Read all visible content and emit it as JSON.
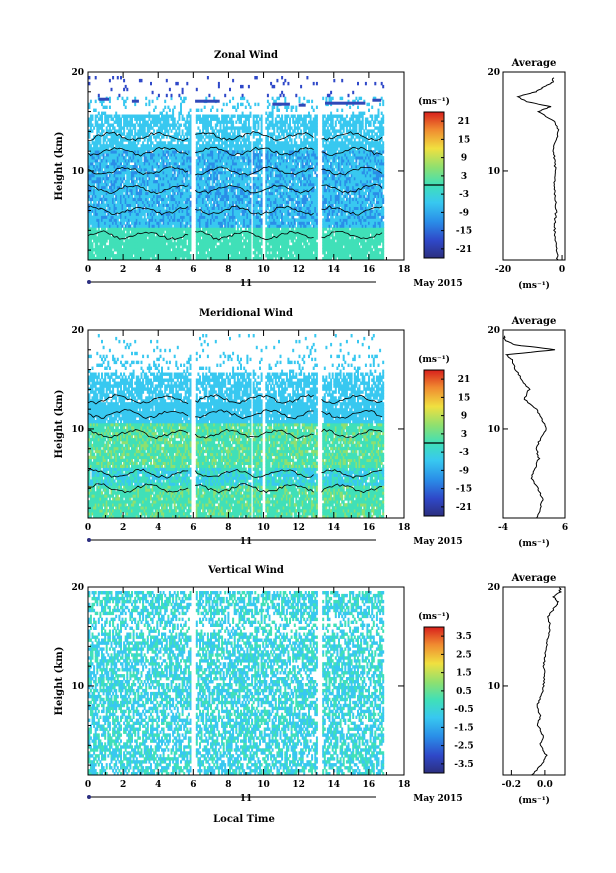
{
  "figure": {
    "xlabel": "Local Time",
    "date_label": "May 2015",
    "day_label": "11",
    "colors": {
      "low": "#2c2f80",
      "mid": "#38c8f0",
      "high": "#d8201c"
    }
  },
  "chart_data": [
    {
      "type": "heatmap",
      "title": "Zonal Wind",
      "ylabel": "Height (km)",
      "xlim": [
        0,
        18
      ],
      "ylim": [
        1,
        20
      ],
      "x_ticks": [
        "0",
        "2",
        "4",
        "6",
        "8",
        "10",
        "12",
        "14",
        "16",
        "18"
      ],
      "y_ticks": [
        "10",
        "20"
      ],
      "colorbar": {
        "unit": "(ms⁻¹)",
        "range": [
          -24,
          24
        ],
        "ticks": [
          "21",
          "15",
          "9",
          "3",
          "-3",
          "-9",
          "-15",
          "-21"
        ],
        "contour_level": 0
      },
      "data_gaps_local_time": [
        [
          5.8,
          6.1
        ],
        [
          9.2,
          9.35
        ],
        [
          9.9,
          10.05
        ],
        [
          13.0,
          13.3
        ],
        [
          16.8,
          18
        ]
      ],
      "average": {
        "title": "Average",
        "xlabel": "(ms⁻¹)",
        "xlim": [
          -20,
          1
        ],
        "x_ticks": [
          "-20",
          "0"
        ],
        "y_ticks": [
          "10",
          "20"
        ],
        "height": [
          1,
          2,
          3,
          4,
          5,
          6,
          7,
          8,
          9,
          10,
          11,
          12,
          13,
          14,
          15,
          16,
          16.5,
          17,
          17.5,
          18,
          18.5,
          19
        ],
        "value": [
          -1.5,
          -1.8,
          -2.2,
          -2.5,
          -2.3,
          -2.0,
          -2.2,
          -2.6,
          -2.4,
          -2.2,
          -2.5,
          -2.8,
          -2.3,
          -1.2,
          -2.5,
          -8,
          -4,
          -12,
          -15,
          -9,
          -6,
          -3
        ]
      }
    },
    {
      "type": "heatmap",
      "title": "Meridional Wind",
      "ylabel": "Height (km)",
      "xlim": [
        0,
        18
      ],
      "ylim": [
        1,
        20
      ],
      "x_ticks": [
        "0",
        "2",
        "4",
        "6",
        "8",
        "10",
        "12",
        "14",
        "16",
        "18"
      ],
      "y_ticks": [
        "10",
        "20"
      ],
      "colorbar": {
        "unit": "(ms⁻¹)",
        "range": [
          -24,
          24
        ],
        "ticks": [
          "21",
          "15",
          "9",
          "3",
          "-3",
          "-9",
          "-15",
          "-21"
        ],
        "contour_level": 0
      },
      "data_gaps_local_time": [
        [
          5.8,
          6.1
        ],
        [
          9.2,
          9.35
        ],
        [
          9.9,
          10.05
        ],
        [
          13.0,
          13.3
        ],
        [
          16.8,
          18
        ]
      ],
      "average": {
        "title": "Average",
        "xlabel": "(ms⁻¹)",
        "xlim": [
          -4,
          6
        ],
        "x_ticks": [
          "-4",
          "6"
        ],
        "y_ticks": [
          "10",
          "20"
        ],
        "height": [
          1,
          2,
          3,
          4,
          5,
          6,
          7,
          8,
          9,
          10,
          11,
          12,
          13,
          14,
          15,
          16,
          17,
          17.5,
          18,
          18.5,
          19
        ],
        "value": [
          1.5,
          2.0,
          2.4,
          1.6,
          0.6,
          1.2,
          1.8,
          1.4,
          2.0,
          3.0,
          2.2,
          1.4,
          -0.5,
          0.2,
          -1.0,
          -2.0,
          -2.5,
          -3.5,
          4.5,
          -2.0,
          -3.8
        ]
      }
    },
    {
      "type": "heatmap",
      "title": "Vertical Wind",
      "ylabel": "Height (km)",
      "xlim": [
        0,
        18
      ],
      "ylim": [
        1,
        20
      ],
      "x_ticks": [
        "0",
        "2",
        "4",
        "6",
        "8",
        "10",
        "12",
        "14",
        "16",
        "18"
      ],
      "y_ticks": [
        "10",
        "20"
      ],
      "colorbar": {
        "unit": "(ms⁻¹)",
        "range": [
          -4,
          4
        ],
        "ticks": [
          "3.5",
          "2.5",
          "1.5",
          "0.5",
          "-0.5",
          "-1.5",
          "-2.5",
          "-3.5"
        ]
      },
      "data_gaps_local_time": [
        [
          5.8,
          6.1
        ],
        [
          13.0,
          13.3
        ],
        [
          16.8,
          18
        ]
      ],
      "average": {
        "title": "Average",
        "xlabel": "(ms⁻¹)",
        "xlim": [
          -0.25,
          0.12
        ],
        "x_ticks": [
          "-0.2",
          "0.0"
        ],
        "y_ticks": [
          "10",
          "20"
        ],
        "height": [
          1,
          2,
          3,
          4,
          5,
          6,
          7,
          8,
          9,
          10,
          11,
          12,
          13,
          14,
          15,
          16,
          17,
          18,
          18.5,
          19,
          19.5
        ],
        "value": [
          -0.08,
          -0.02,
          0.01,
          -0.03,
          -0.01,
          -0.04,
          -0.03,
          -0.05,
          -0.02,
          -0.01,
          0.0,
          -0.01,
          0.0,
          0.01,
          0.02,
          0.03,
          0.02,
          0.06,
          0.08,
          0.05,
          0.09
        ]
      }
    }
  ]
}
